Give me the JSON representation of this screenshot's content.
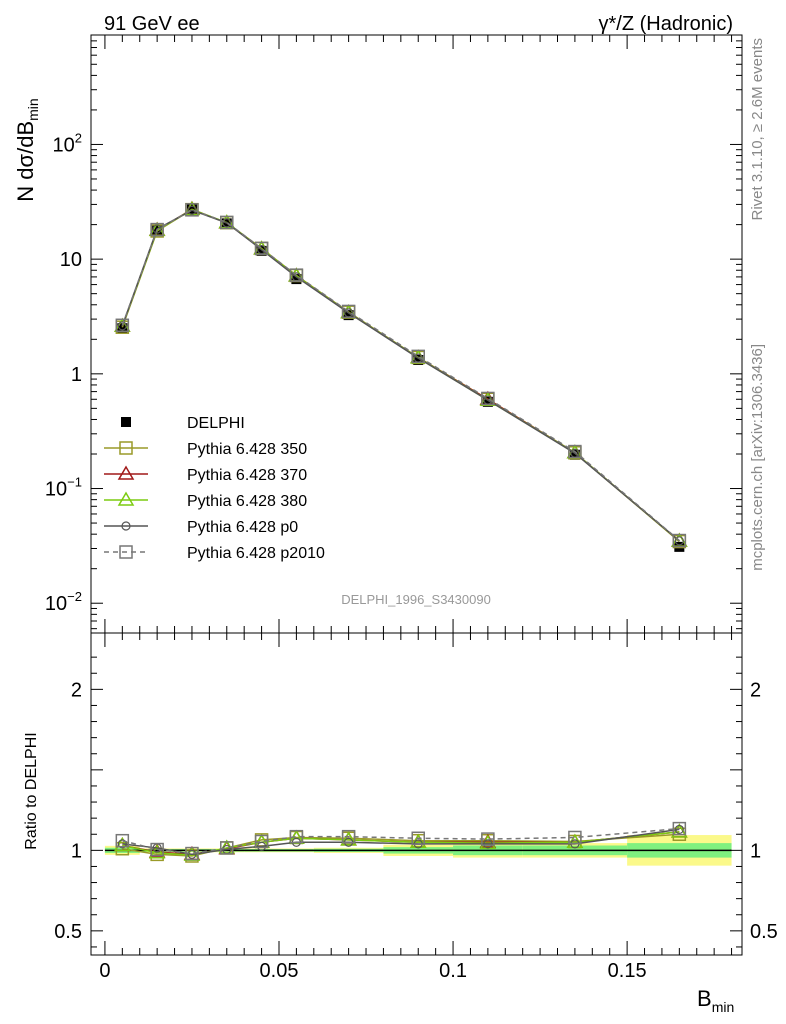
{
  "header": {
    "left_title": "91 GeV ee",
    "right_title": "γ*/Z (Hadronic)"
  },
  "side_text": {
    "rivet": "Rivet 3.1.10, ≥ 2.6M events",
    "mcplots": "mcplots.cern.ch [arXiv:1306.3436]"
  },
  "analysis_label": "DELPHI_1996_S3430090",
  "chart_data": [
    {
      "type": "line",
      "panel": "main",
      "title": "91 GeV ee — γ*/Z (Hadronic)",
      "xlabel": "B_min",
      "ylabel": "N dσ/dB_min",
      "yscale": "log",
      "xlim": [
        -0.004,
        0.183
      ],
      "ylim": [
        0.0055,
        900
      ],
      "y_ticks": [
        {
          "value": 0.01,
          "base": "10",
          "exp": "−2"
        },
        {
          "value": 0.1,
          "base": "10",
          "exp": "−1"
        },
        {
          "value": 1,
          "base": "1",
          "exp": ""
        },
        {
          "value": 10,
          "base": "10",
          "exp": ""
        },
        {
          "value": 100,
          "base": "10",
          "exp": "2"
        }
      ],
      "x": [
        0.005,
        0.015,
        0.025,
        0.035,
        0.045,
        0.055,
        0.07,
        0.09,
        0.11,
        0.135,
        0.165
      ],
      "series": [
        {
          "name": "DELPHI",
          "color": "#000000",
          "marker": "filled-square",
          "line": "none",
          "values": [
            2.5,
            18.0,
            27.5,
            20.5,
            11.8,
            6.7,
            3.25,
            1.32,
            0.57,
            0.197,
            0.031
          ]
        },
        {
          "name": "Pythia 6.428 350",
          "color": "#9a9a28",
          "marker": "open-square",
          "line": "solid",
          "values": [
            2.55,
            17.6,
            27.0,
            20.8,
            12.4,
            7.2,
            3.45,
            1.39,
            0.6,
            0.205,
            0.0345
          ]
        },
        {
          "name": "Pythia 6.428 370",
          "color": "#a01818",
          "marker": "open-triangle",
          "line": "solid",
          "values": [
            2.6,
            17.9,
            27.2,
            20.7,
            12.3,
            7.15,
            3.42,
            1.38,
            0.6,
            0.205,
            0.0348
          ]
        },
        {
          "name": "Pythia 6.428 380",
          "color": "#7ccc10",
          "marker": "open-triangle",
          "line": "solid",
          "values": [
            2.6,
            17.8,
            27.1,
            20.8,
            12.3,
            7.15,
            3.42,
            1.38,
            0.59,
            0.205,
            0.0348
          ]
        },
        {
          "name": "Pythia 6.428 p0",
          "color": "#555555",
          "marker": "open-circle",
          "line": "solid",
          "values": [
            2.62,
            18.3,
            26.7,
            20.7,
            12.1,
            7.0,
            3.4,
            1.37,
            0.59,
            0.203,
            0.035
          ]
        },
        {
          "name": "Pythia 6.428 p2010",
          "color": "#777777",
          "marker": "open-square",
          "line": "dashed",
          "values": [
            2.65,
            18.1,
            26.9,
            20.9,
            12.4,
            7.25,
            3.5,
            1.42,
            0.61,
            0.21,
            0.0352
          ]
        }
      ]
    },
    {
      "type": "line",
      "panel": "ratio",
      "xlabel": "B_min",
      "ylabel": "Ratio to DELPHI",
      "xlim": [
        -0.004,
        0.183
      ],
      "ylim": [
        0.35,
        2.35
      ],
      "x_ticks": [
        "0",
        "0.05",
        "0.1",
        "0.15"
      ],
      "y_ticks": [
        "0.5",
        "1",
        "2"
      ],
      "bands": {
        "bins": [
          [
            0,
            0.01
          ],
          [
            0.01,
            0.02
          ],
          [
            0.02,
            0.03
          ],
          [
            0.03,
            0.04
          ],
          [
            0.04,
            0.05
          ],
          [
            0.05,
            0.06
          ],
          [
            0.06,
            0.08
          ],
          [
            0.08,
            0.1
          ],
          [
            0.1,
            0.12
          ],
          [
            0.12,
            0.15
          ],
          [
            0.15,
            0.18
          ]
        ],
        "stat_syst_half_width": [
          0.016,
          0.008,
          0.008,
          0.008,
          0.008,
          0.008,
          0.01,
          0.02,
          0.03,
          0.03,
          0.045
        ],
        "total_half_width": [
          0.028,
          0.012,
          0.012,
          0.012,
          0.012,
          0.012,
          0.016,
          0.035,
          0.045,
          0.045,
          0.095
        ],
        "inner_color": "#7ff07f",
        "outer_color": "#fbf98a"
      },
      "x": [
        0.005,
        0.015,
        0.025,
        0.035,
        0.045,
        0.055,
        0.07,
        0.09,
        0.11,
        0.135,
        0.165
      ],
      "series": [
        {
          "name": "Pythia 6.428 350",
          "color": "#9a9a28",
          "marker": "open-square",
          "line": "solid",
          "values": [
            1.01,
            0.975,
            0.965,
            1.015,
            1.065,
            1.08,
            1.075,
            1.06,
            1.06,
            1.055,
            1.1
          ]
        },
        {
          "name": "Pythia 6.428 370",
          "color": "#a01818",
          "marker": "open-triangle",
          "line": "solid",
          "values": [
            1.03,
            0.99,
            0.975,
            1.01,
            1.05,
            1.075,
            1.065,
            1.05,
            1.05,
            1.05,
            1.115
          ]
        },
        {
          "name": "Pythia 6.428 380",
          "color": "#7ccc10",
          "marker": "open-triangle",
          "line": "solid",
          "values": [
            1.03,
            0.985,
            0.97,
            1.015,
            1.05,
            1.075,
            1.065,
            1.05,
            1.045,
            1.05,
            1.115
          ]
        },
        {
          "name": "Pythia 6.428 p0",
          "color": "#555555",
          "marker": "open-circle",
          "line": "solid",
          "values": [
            1.04,
            1.015,
            0.975,
            1.005,
            1.025,
            1.05,
            1.05,
            1.04,
            1.04,
            1.04,
            1.13
          ]
        },
        {
          "name": "Pythia 6.428 p2010",
          "color": "#777777",
          "marker": "open-square",
          "line": "dashed",
          "values": [
            1.06,
            1.005,
            0.98,
            1.015,
            1.055,
            1.085,
            1.085,
            1.075,
            1.07,
            1.08,
            1.135
          ]
        }
      ]
    }
  ]
}
